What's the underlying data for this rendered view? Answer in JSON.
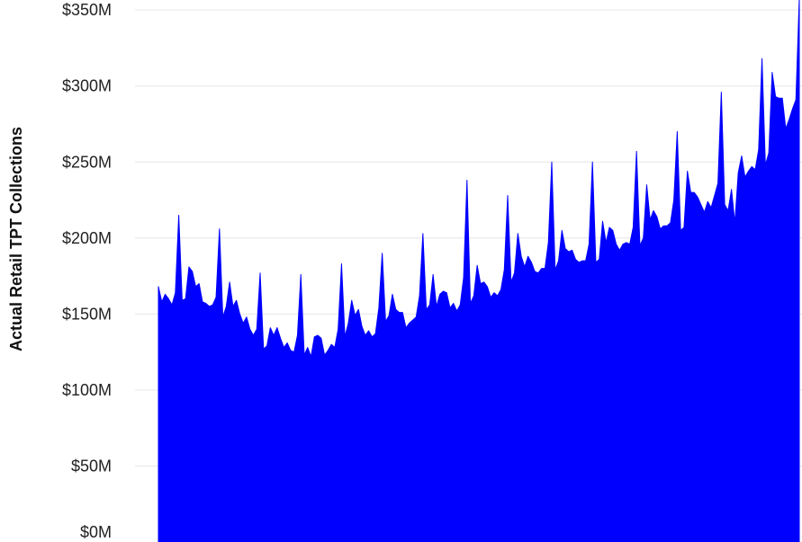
{
  "chart_data": {
    "type": "area",
    "title": "",
    "xlabel": "",
    "ylabel": "Actual Retail TPT Collections",
    "ylim": [
      0,
      350
    ],
    "y_unit": "M",
    "y_tick_values": [
      0,
      50,
      100,
      150,
      200,
      250,
      300,
      350
    ],
    "y_tick_labels": [
      "$0M",
      "$50M",
      "$100M",
      "$150M",
      "$200M",
      "$250M",
      "$300M",
      "$350M"
    ],
    "grid": true,
    "legend": "none",
    "fill_color": "#0000FF",
    "series": [
      {
        "values": [
          168,
          158,
          163,
          160,
          156,
          164,
          215,
          159,
          160,
          181,
          178,
          168,
          170,
          158,
          157,
          155,
          156,
          161,
          206,
          148,
          155,
          171,
          155,
          159,
          150,
          144,
          148,
          140,
          136,
          140,
          177,
          127,
          129,
          141,
          136,
          141,
          134,
          128,
          131,
          126,
          125,
          136,
          176,
          123,
          128,
          122,
          135,
          136,
          134,
          123,
          126,
          130,
          128,
          140,
          183,
          135,
          144,
          159,
          149,
          153,
          142,
          136,
          139,
          135,
          137,
          154,
          190,
          145,
          149,
          163,
          153,
          151,
          151,
          141,
          144,
          146,
          148,
          162,
          203,
          153,
          156,
          176,
          155,
          163,
          165,
          164,
          154,
          157,
          152,
          156,
          174,
          238,
          157,
          162,
          182,
          170,
          171,
          168,
          161,
          164,
          162,
          166,
          179,
          228,
          171,
          177,
          203,
          188,
          181,
          188,
          184,
          178,
          177,
          180,
          180,
          197,
          250,
          179,
          185,
          205,
          193,
          191,
          192,
          186,
          184,
          185,
          185,
          196,
          250,
          184,
          186,
          211,
          197,
          207,
          205,
          196,
          192,
          196,
          197,
          196,
          207,
          257,
          195,
          200,
          235,
          212,
          218,
          214,
          206,
          208,
          208,
          210,
          225,
          270,
          205,
          207,
          244,
          230,
          230,
          227,
          222,
          217,
          224,
          220,
          228,
          236,
          296,
          222,
          218,
          232,
          210,
          243,
          254,
          240,
          244,
          247,
          245,
          258,
          318,
          248,
          256,
          309,
          293,
          292,
          292,
          272,
          278,
          285,
          291,
          358
        ]
      }
    ]
  }
}
